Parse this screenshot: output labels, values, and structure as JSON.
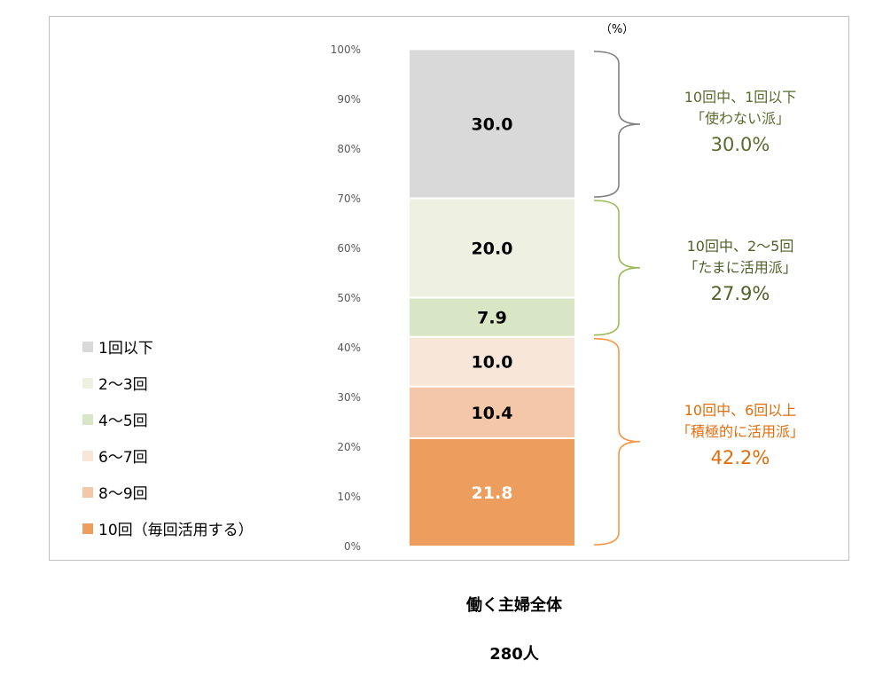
{
  "chart_data": {
    "type": "bar",
    "stacked": true,
    "unit_label": "（%）",
    "y_ticks": [
      "0%",
      "10%",
      "20%",
      "30%",
      "40%",
      "50%",
      "60%",
      "70%",
      "80%",
      "90%",
      "100%"
    ],
    "ylim": [
      0,
      100
    ],
    "categories": [
      "働く主婦全体"
    ],
    "category_sub": "280人",
    "legend_placement": "left",
    "series": [
      {
        "name": "10回（毎回活用する）",
        "value": 21.8,
        "label": "21.8",
        "color": "#ED9D5E",
        "text_color": "#ffffff"
      },
      {
        "name": "8〜9回",
        "value": 10.4,
        "label": "10.4",
        "color": "#F3C7A7",
        "text_color": "#000000"
      },
      {
        "name": "6〜7回",
        "value": 10.0,
        "label": "10.0",
        "color": "#F8E6D9",
        "text_color": "#000000"
      },
      {
        "name": "4〜5回",
        "value": 7.9,
        "label": "7.9",
        "color": "#D9E6C6",
        "text_color": "#000000"
      },
      {
        "name": "2〜3回",
        "value": 20.0,
        "label": "20.0",
        "color": "#EEF1E2",
        "text_color": "#000000"
      },
      {
        "name": "1回以下",
        "value": 30.0,
        "label": "30.0",
        "color": "#D9D9D9",
        "text_color": "#000000"
      }
    ],
    "groups": [
      {
        "line1": "10回中、1回以下",
        "line2": "「使わない派」",
        "pct": "30.0%",
        "from": 70,
        "to": 100,
        "color": "#5A6B2E",
        "brace_color": "#808080"
      },
      {
        "line1": "10回中、2〜5回",
        "line2": "「たまに活用派」",
        "pct": "27.9%",
        "from": 42.2,
        "to": 70,
        "color": "#4F5F28",
        "brace_color": "#9BBB59"
      },
      {
        "line1": "10回中、6回以上",
        "line2": "「積極的に活用派」",
        "pct": "42.2%",
        "from": 0,
        "to": 42.2,
        "color": "#E36C0A",
        "brace_color": "#F79646"
      }
    ]
  },
  "legend": [
    {
      "label": "1回以下",
      "color": "#D9D9D9"
    },
    {
      "label": "2〜3回",
      "color": "#EEF1E2"
    },
    {
      "label": "4〜5回",
      "color": "#D9E6C6"
    },
    {
      "label": "6〜7回",
      "color": "#F8E6D9"
    },
    {
      "label": "8〜9回",
      "color": "#F3C7A7"
    },
    {
      "label": "10回（毎回活用する）",
      "color": "#ED9D5E"
    }
  ]
}
